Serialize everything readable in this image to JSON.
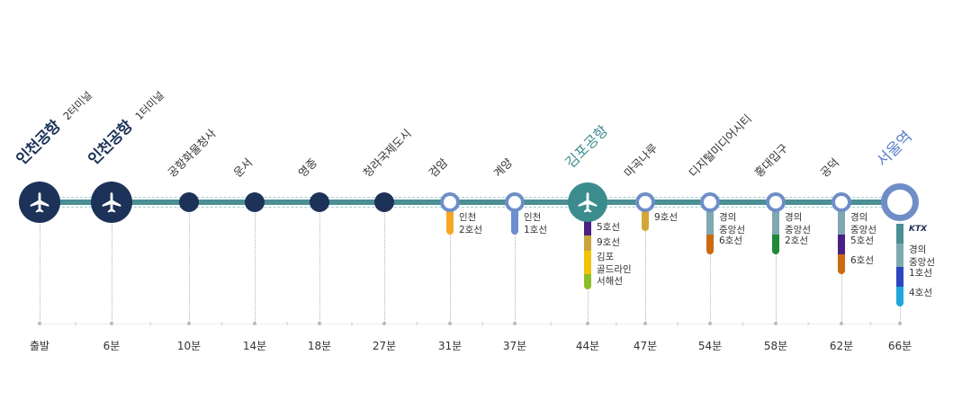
{
  "colors": {
    "track": "#4b8f95",
    "track_dash": "#9fcfd3",
    "navy": "#1c3258",
    "teal": "#3b8c8d",
    "blue": "#5b7fc8",
    "ring": "#6f8ec7"
  },
  "stations": [
    {
      "name": "인천공항",
      "sub": "2터미널",
      "time": "출발",
      "type": "airport"
    },
    {
      "name": "인천공항",
      "sub": "1터미널",
      "time": "6분",
      "type": "airport"
    },
    {
      "name": "공항화물청사",
      "sub": "",
      "time": "10분",
      "type": "dark"
    },
    {
      "name": "운서",
      "sub": "",
      "time": "14분",
      "type": "dark"
    },
    {
      "name": "영종",
      "sub": "",
      "time": "18분",
      "type": "dark"
    },
    {
      "name": "청라국제도시",
      "sub": "",
      "time": "27분",
      "type": "dark"
    },
    {
      "name": "검암",
      "sub": "",
      "time": "31분",
      "type": "ring",
      "transfers": [
        {
          "label": "인천\n2호선",
          "color": "#f5a623"
        }
      ]
    },
    {
      "name": "계양",
      "sub": "",
      "time": "37분",
      "type": "ring",
      "transfers": [
        {
          "label": "인천\n1호선",
          "color": "#6b8ed1"
        }
      ]
    },
    {
      "name": "김포공항",
      "sub": "",
      "time": "44분",
      "type": "gimpo",
      "transfers": [
        {
          "label": "5호선",
          "color": "#4a1f86"
        },
        {
          "label": "9호선",
          "color": "#c9a43c"
        },
        {
          "label": "김포\n골드라인",
          "color": "#f2c200"
        },
        {
          "label": "서해선",
          "color": "#8cbf26"
        }
      ]
    },
    {
      "name": "마곡나루",
      "sub": "",
      "time": "47분",
      "type": "ring",
      "transfers": [
        {
          "label": "9호선",
          "color": "#d4a735"
        }
      ]
    },
    {
      "name": "디지털미디어시티",
      "sub": "",
      "time": "54분",
      "type": "ring",
      "transfers": [
        {
          "label": "경의\n중앙선",
          "color": "#7fa8b0"
        },
        {
          "label": "6호선",
          "color": "#cc6a12"
        }
      ]
    },
    {
      "name": "홍대입구",
      "sub": "",
      "time": "58분",
      "type": "ring",
      "transfers": [
        {
          "label": "경의\n중앙선",
          "color": "#7fa8b0"
        },
        {
          "label": "2호선",
          "color": "#1f8a3a"
        }
      ]
    },
    {
      "name": "공덕",
      "sub": "",
      "time": "62분",
      "type": "ring",
      "transfers": [
        {
          "label": "경의\n중앙선",
          "color": "#7fa8b0"
        },
        {
          "label": "5호선",
          "color": "#4a1f86"
        },
        {
          "label": "6호선",
          "color": "#cc6a12"
        }
      ]
    },
    {
      "name": "서울역",
      "sub": "",
      "time": "66분",
      "type": "seoul",
      "transfers": [
        {
          "label": "KTX",
          "color": "#4b8f95",
          "logo": true
        },
        {
          "label": "경의\n중앙선",
          "color": "#7fa8b0"
        },
        {
          "label": "1호선",
          "color": "#2a46c0"
        },
        {
          "label": "4호선",
          "color": "#1fa6db"
        }
      ]
    }
  ]
}
